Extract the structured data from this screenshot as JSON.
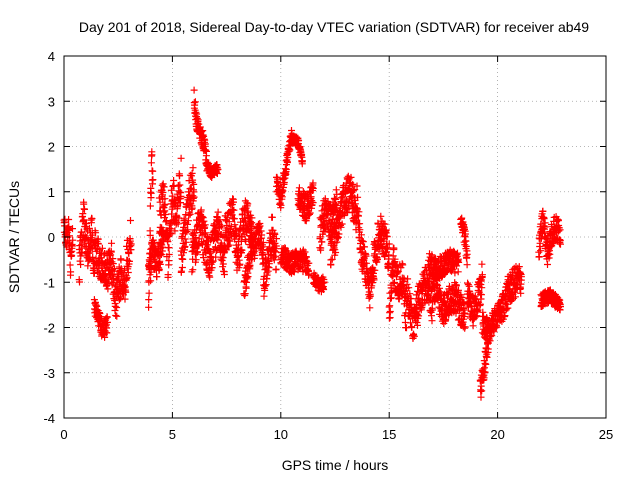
{
  "chart_data": {
    "type": "scatter",
    "title": "Day 201 of 2018, Sidereal Day-to-day VTEC variation (SDTVAR) for receiver ab49",
    "xlabel": "GPS time / hours",
    "ylabel": "SDTVAR / TECUs",
    "xlim": [
      0,
      25
    ],
    "ylim": [
      -4,
      4
    ],
    "xticks": [
      0,
      5,
      10,
      15,
      20,
      25
    ],
    "yticks": [
      -4,
      -3,
      -2,
      -1,
      0,
      1,
      2,
      3,
      4
    ],
    "grid": true,
    "legend": "none",
    "marker": "+",
    "color": "#ff0000",
    "series": [
      {
        "name": "SDTVAR",
        "segments": [
          {
            "x0": 0.0,
            "x1": 0.4,
            "points": [
              [
                0.0,
                0.5
              ],
              [
                0.1,
                -0.2
              ],
              [
                0.2,
                0.3
              ],
              [
                0.3,
                -0.6
              ],
              [
                0.4,
                0.1
              ]
            ],
            "spread": 0.3
          },
          {
            "x0": 0.7,
            "x1": 1.4,
            "points": [
              [
                0.7,
                -0.7
              ],
              [
                0.9,
                0.4
              ],
              [
                1.1,
                -0.3
              ],
              [
                1.3,
                0.2
              ],
              [
                1.4,
                -0.9
              ]
            ],
            "spread": 0.4
          },
          {
            "x0": 1.4,
            "x1": 2.0,
            "points": [
              [
                1.4,
                -1.5
              ],
              [
                1.6,
                -1.8
              ],
              [
                1.8,
                -2.1
              ],
              [
                2.0,
                -1.9
              ]
            ],
            "spread": 0.2
          },
          {
            "x0": 1.4,
            "x1": 2.2,
            "points": [
              [
                1.4,
                -0.2
              ],
              [
                1.7,
                -0.6
              ],
              [
                2.0,
                -0.8
              ],
              [
                2.2,
                -0.4
              ]
            ],
            "spread": 0.4
          },
          {
            "x0": 2.2,
            "x1": 3.1,
            "points": [
              [
                2.2,
                -0.6
              ],
              [
                2.4,
                -1.4
              ],
              [
                2.6,
                -0.9
              ],
              [
                2.8,
                -1.0
              ],
              [
                3.0,
                -0.2
              ],
              [
                3.1,
                0.1
              ]
            ],
            "spread": 0.45
          },
          {
            "x0": 3.9,
            "x1": 4.1,
            "points": [
              [
                3.9,
                -1.6
              ],
              [
                4.0,
                0.8
              ],
              [
                4.05,
                1.8
              ],
              [
                4.1,
                1.2
              ]
            ],
            "spread": 0.3
          },
          {
            "x0": 3.9,
            "x1": 4.6,
            "points": [
              [
                3.9,
                -0.9
              ],
              [
                4.1,
                -0.3
              ],
              [
                4.3,
                -0.6
              ],
              [
                4.6,
                0.0
              ]
            ],
            "spread": 0.35
          },
          {
            "x0": 4.4,
            "x1": 5.4,
            "points": [
              [
                4.4,
                0.4
              ],
              [
                4.6,
                1.0
              ],
              [
                4.8,
                -0.5
              ],
              [
                5.0,
                0.9
              ],
              [
                5.2,
                0.4
              ],
              [
                5.4,
                1.3
              ]
            ],
            "spread": 0.5
          },
          {
            "x0": 5.4,
            "x1": 6.0,
            "points": [
              [
                5.4,
                -0.6
              ],
              [
                5.6,
                0.2
              ],
              [
                5.8,
                0.9
              ],
              [
                6.0,
                1.2
              ]
            ],
            "spread": 0.45
          },
          {
            "x0": 6.0,
            "x1": 6.6,
            "points": [
              [
                6.0,
                3.1
              ],
              [
                6.1,
                2.6
              ],
              [
                6.3,
                2.3
              ],
              [
                6.5,
                2.0
              ],
              [
                6.6,
                1.6
              ]
            ],
            "spread": 0.2
          },
          {
            "x0": 6.6,
            "x1": 7.1,
            "points": [
              [
                6.6,
                1.6
              ],
              [
                6.8,
                1.4
              ],
              [
                7.0,
                1.5
              ]
            ],
            "spread": 0.1
          },
          {
            "x0": 5.9,
            "x1": 7.4,
            "points": [
              [
                5.9,
                -0.4
              ],
              [
                6.3,
                0.3
              ],
              [
                6.7,
                -0.6
              ],
              [
                7.1,
                0.2
              ],
              [
                7.4,
                -0.4
              ]
            ],
            "spread": 0.45
          },
          {
            "x0": 7.4,
            "x1": 8.6,
            "points": [
              [
                7.4,
                0.0
              ],
              [
                7.8,
                0.5
              ],
              [
                8.0,
                -0.5
              ],
              [
                8.3,
                0.4
              ],
              [
                8.6,
                0.2
              ]
            ],
            "spread": 0.45
          },
          {
            "x0": 8.3,
            "x1": 8.7,
            "points": [
              [
                8.3,
                -1.2
              ],
              [
                8.5,
                -0.6
              ],
              [
                8.7,
                -0.2
              ]
            ],
            "spread": 0.25
          },
          {
            "x0": 8.6,
            "x1": 9.2,
            "points": [
              [
                8.6,
                0.4
              ],
              [
                8.8,
                -0.3
              ],
              [
                9.0,
                0.2
              ],
              [
                9.2,
                -0.4
              ]
            ],
            "spread": 0.3
          },
          {
            "x0": 9.2,
            "x1": 9.8,
            "points": [
              [
                9.2,
                -1.0
              ],
              [
                9.4,
                -0.5
              ],
              [
                9.6,
                0.1
              ],
              [
                9.8,
                -0.4
              ]
            ],
            "spread": 0.4
          },
          {
            "x0": 9.8,
            "x1": 10.5,
            "points": [
              [
                9.8,
                1.2
              ],
              [
                10.0,
                0.8
              ],
              [
                10.2,
                1.5
              ],
              [
                10.5,
                2.2
              ]
            ],
            "spread": 0.2
          },
          {
            "x0": 10.5,
            "x1": 11.0,
            "points": [
              [
                10.5,
                2.2
              ],
              [
                10.8,
                2.1
              ],
              [
                11.0,
                1.7
              ]
            ],
            "spread": 0.1
          },
          {
            "x0": 10.0,
            "x1": 11.3,
            "points": [
              [
                10.0,
                -0.4
              ],
              [
                10.5,
                -0.6
              ],
              [
                11.0,
                -0.5
              ],
              [
                11.3,
                -0.7
              ]
            ],
            "spread": 0.25
          },
          {
            "x0": 10.8,
            "x1": 11.5,
            "points": [
              [
                10.8,
                0.9
              ],
              [
                11.2,
                0.6
              ],
              [
                11.5,
                1.0
              ]
            ],
            "spread": 0.3
          },
          {
            "x0": 11.5,
            "x1": 12.0,
            "points": [
              [
                11.5,
                -0.9
              ],
              [
                11.8,
                -1.1
              ],
              [
                12.0,
                -1.0
              ]
            ],
            "spread": 0.15
          },
          {
            "x0": 11.8,
            "x1": 12.6,
            "points": [
              [
                11.8,
                0.0
              ],
              [
                12.0,
                0.5
              ],
              [
                12.3,
                0.3
              ],
              [
                12.6,
                0.7
              ]
            ],
            "spread": 0.4
          },
          {
            "x0": 12.3,
            "x1": 13.5,
            "points": [
              [
                12.3,
                -0.3
              ],
              [
                12.6,
                0.1
              ],
              [
                12.9,
                0.8
              ],
              [
                13.2,
                1.0
              ],
              [
                13.5,
                0.5
              ]
            ],
            "spread": 0.4
          },
          {
            "x0": 13.5,
            "x1": 14.3,
            "points": [
              [
                13.5,
                1.0
              ],
              [
                13.7,
                -0.3
              ],
              [
                13.9,
                -0.6
              ],
              [
                14.1,
                -1.2
              ],
              [
                14.3,
                -0.8
              ]
            ],
            "spread": 0.4
          },
          {
            "x0": 14.3,
            "x1": 15.0,
            "points": [
              [
                14.3,
                -0.5
              ],
              [
                14.6,
                0.2
              ],
              [
                15.0,
                -0.4
              ]
            ],
            "spread": 0.4
          },
          {
            "x0": 15.0,
            "x1": 15.8,
            "points": [
              [
                15.0,
                -1.6
              ],
              [
                15.2,
                -0.6
              ],
              [
                15.4,
                -1.1
              ],
              [
                15.6,
                -0.9
              ],
              [
                15.8,
                -1.8
              ]
            ],
            "spread": 0.4
          },
          {
            "x0": 15.8,
            "x1": 17.0,
            "points": [
              [
                15.8,
                -1.2
              ],
              [
                16.1,
                -1.9
              ],
              [
                16.4,
                -1.4
              ],
              [
                16.7,
                -1.0
              ],
              [
                17.0,
                -1.5
              ]
            ],
            "spread": 0.4
          },
          {
            "x0": 16.8,
            "x1": 18.2,
            "points": [
              [
                16.8,
                -0.6
              ],
              [
                17.3,
                -0.7
              ],
              [
                17.8,
                -0.5
              ],
              [
                18.2,
                -0.6
              ]
            ],
            "spread": 0.25
          },
          {
            "x0": 17.0,
            "x1": 18.5,
            "points": [
              [
                17.0,
                -1.0
              ],
              [
                17.5,
                -1.6
              ],
              [
                18.0,
                -1.3
              ],
              [
                18.5,
                -1.8
              ]
            ],
            "spread": 0.35
          },
          {
            "x0": 18.3,
            "x1": 18.6,
            "points": [
              [
                18.3,
                0.3
              ],
              [
                18.5,
                0.0
              ],
              [
                18.6,
                -0.5
              ]
            ],
            "spread": 0.2
          },
          {
            "x0": 18.6,
            "x1": 19.3,
            "points": [
              [
                18.6,
                -1.3
              ],
              [
                18.9,
                -1.7
              ],
              [
                19.2,
                -1.2
              ],
              [
                19.3,
                -0.8
              ]
            ],
            "spread": 0.35
          },
          {
            "x0": 19.2,
            "x1": 19.6,
            "points": [
              [
                19.2,
                -3.4
              ],
              [
                19.4,
                -2.8
              ],
              [
                19.6,
                -2.2
              ]
            ],
            "spread": 0.25
          },
          {
            "x0": 19.3,
            "x1": 20.2,
            "points": [
              [
                19.3,
                -1.9
              ],
              [
                19.6,
                -2.1
              ],
              [
                19.9,
                -1.8
              ],
              [
                20.2,
                -1.6
              ]
            ],
            "spread": 0.25
          },
          {
            "x0": 20.2,
            "x1": 21.1,
            "points": [
              [
                20.2,
                -1.6
              ],
              [
                20.5,
                -1.2
              ],
              [
                20.8,
                -1.0
              ],
              [
                21.1,
                -0.9
              ]
            ],
            "spread": 0.35
          },
          {
            "x0": 21.9,
            "x1": 22.3,
            "points": [
              [
                21.9,
                -0.3
              ],
              [
                22.1,
                0.4
              ],
              [
                22.3,
                -0.4
              ]
            ],
            "spread": 0.3
          },
          {
            "x0": 22.0,
            "x1": 22.9,
            "points": [
              [
                22.0,
                -1.4
              ],
              [
                22.4,
                -1.3
              ],
              [
                22.9,
                -1.5
              ]
            ],
            "spread": 0.15
          },
          {
            "x0": 22.3,
            "x1": 22.9,
            "points": [
              [
                22.3,
                -0.3
              ],
              [
                22.6,
                0.2
              ],
              [
                22.9,
                0.1
              ]
            ],
            "spread": 0.3
          }
        ]
      }
    ]
  }
}
